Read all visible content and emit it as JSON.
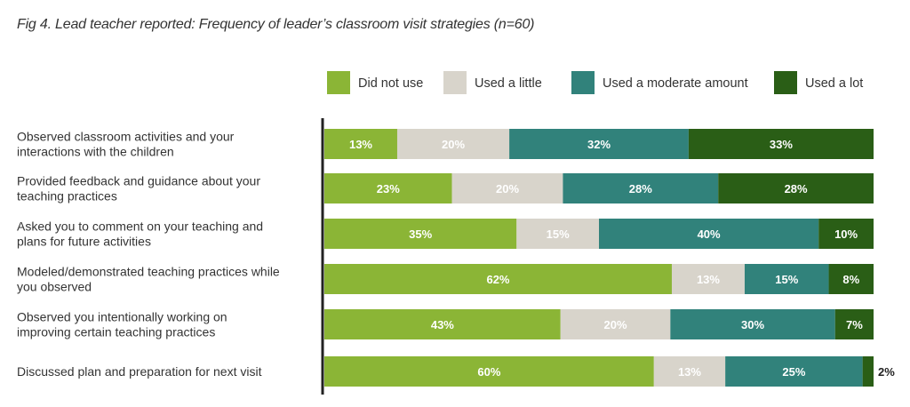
{
  "chart_data": {
    "type": "bar",
    "orientation": "horizontal",
    "stacked": true,
    "title": "Fig 4. Lead teacher reported: Frequency of leader’s classroom visit strategies (n=60)",
    "legend_position": "top",
    "categories": [
      [
        "Observed classroom activities and your",
        "interactions with the children"
      ],
      [
        "Provided feedback and guidance about your",
        "teaching practices"
      ],
      [
        "Asked you to comment on your teaching and",
        "plans for future activities"
      ],
      [
        "Modeled/demonstrated teaching practices while",
        "you observed"
      ],
      [
        "Observed you intentionally working on",
        "improving certain teaching practices"
      ],
      [
        "Discussed plan and preparation for next visit"
      ]
    ],
    "series": [
      {
        "name": "Did not use",
        "color": "#8bb536",
        "label_color": "#ffffff",
        "values": [
          13,
          23,
          35,
          62,
          43,
          60
        ]
      },
      {
        "name": "Used a little",
        "color": "#d8d4cb",
        "label_color": "#ffffff",
        "values": [
          20,
          20,
          15,
          13,
          20,
          13
        ]
      },
      {
        "name": "Used a moderate amount",
        "color": "#31827b",
        "label_color": "#ffffff",
        "values": [
          32,
          28,
          40,
          15,
          30,
          25
        ]
      },
      {
        "name": "Used a lot",
        "color": "#2a5e16",
        "label_color": "#ffffff",
        "values": [
          33,
          28,
          10,
          8,
          7,
          2
        ]
      }
    ],
    "value_suffix": "%",
    "grid": false
  }
}
